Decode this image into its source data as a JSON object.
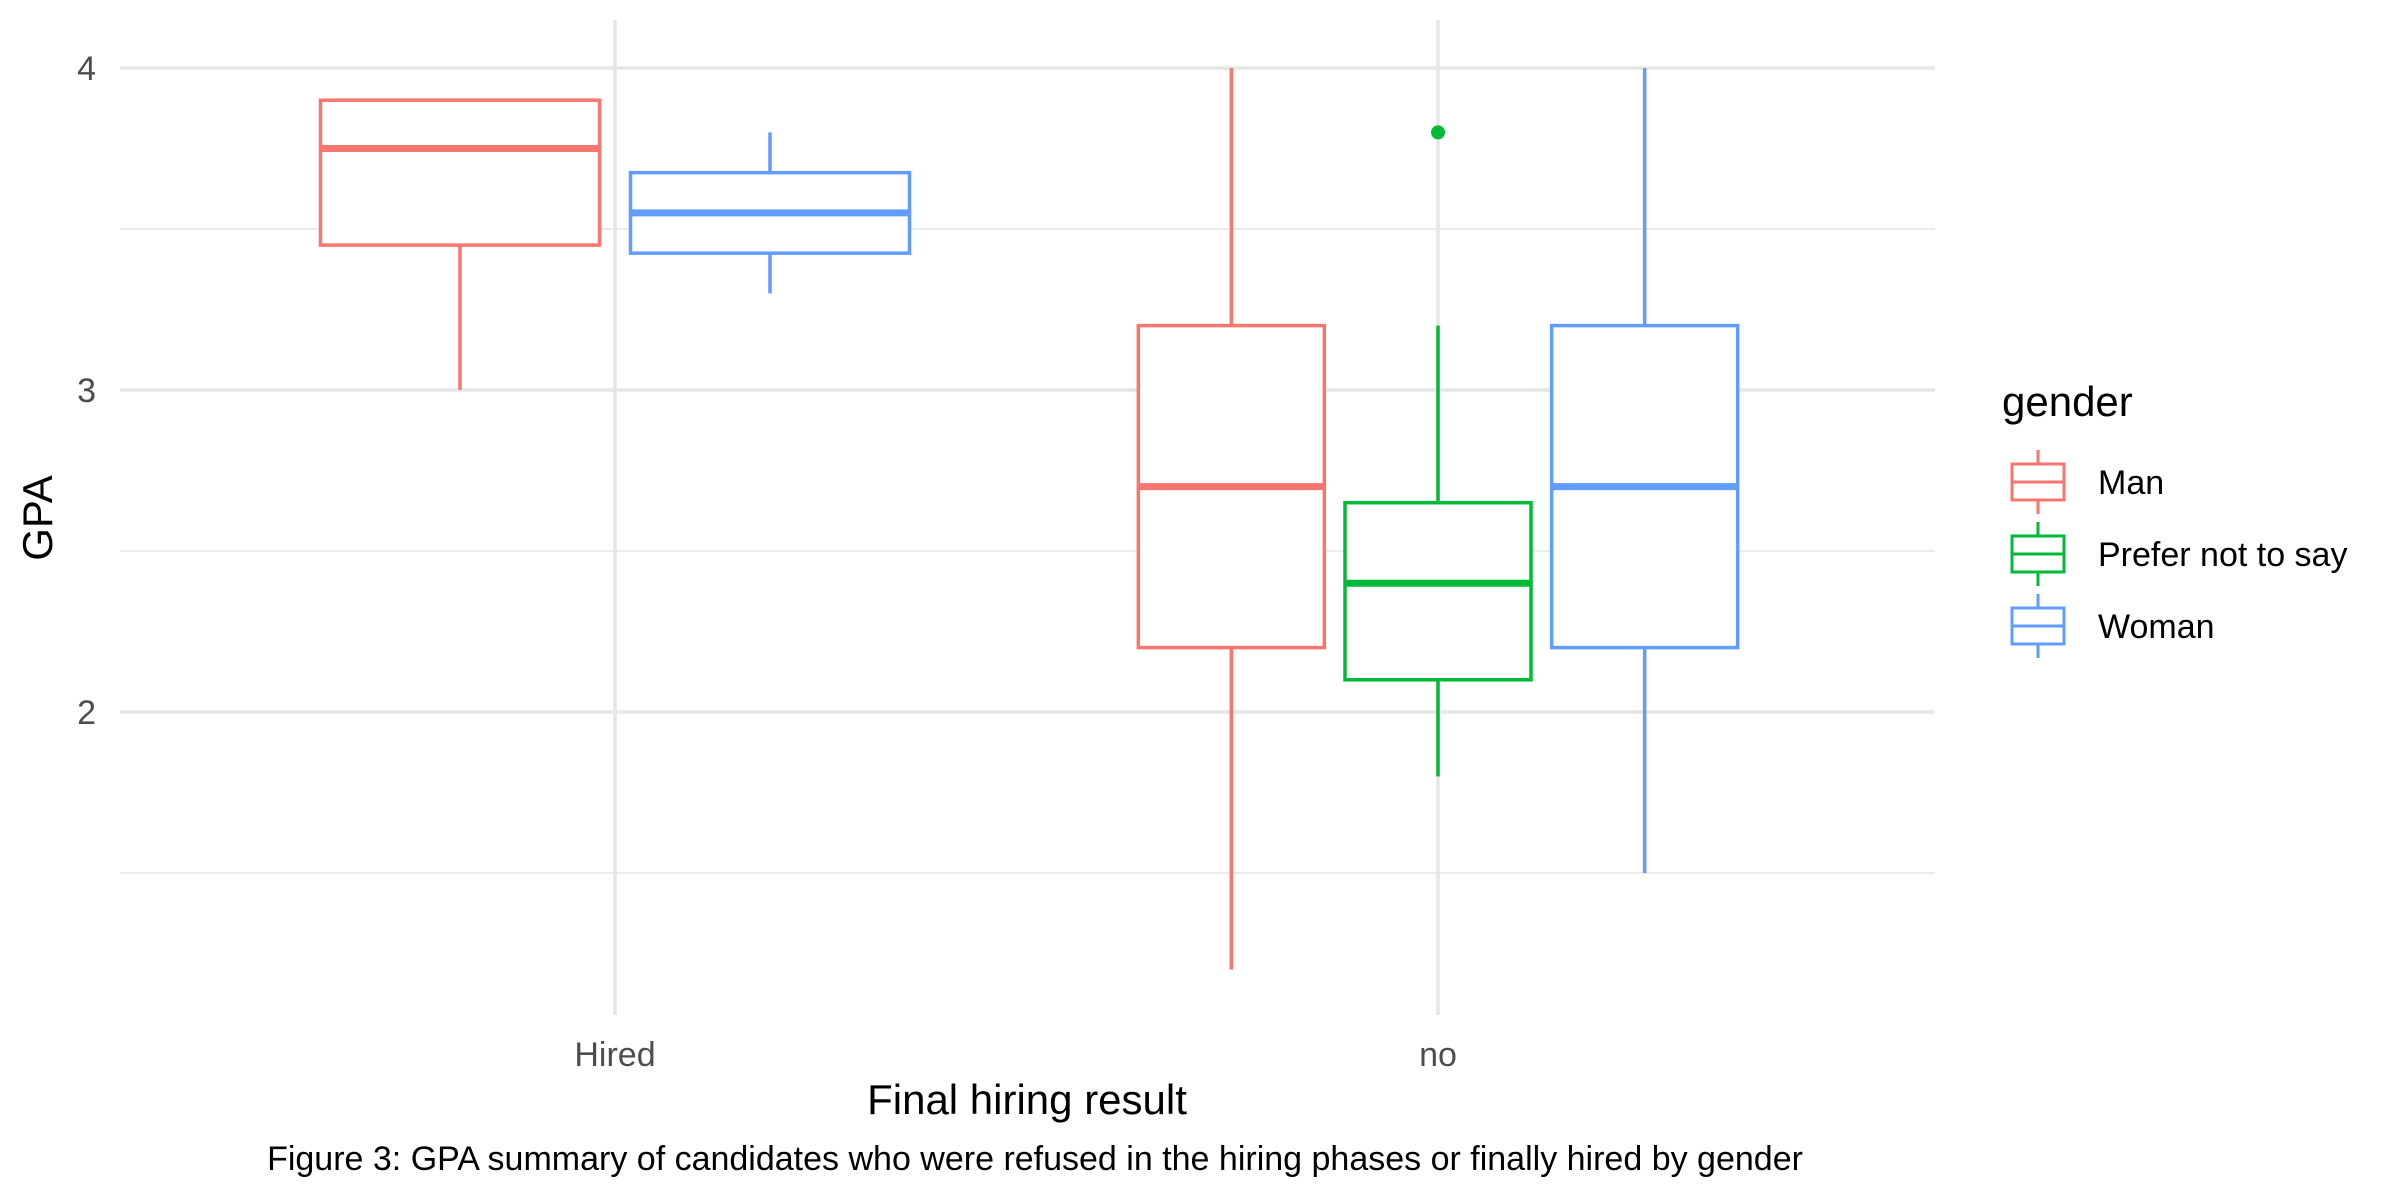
{
  "chart_data": {
    "type": "boxplot",
    "xlabel": "Final hiring result",
    "ylabel": "GPA",
    "categories": [
      "Hired",
      "no"
    ],
    "y_ticks": [
      "2",
      "3",
      "4"
    ],
    "ylim": [
      1.1,
      4.15
    ],
    "grid": true,
    "legend": {
      "title": "gender",
      "placement": "right",
      "entries": [
        "Man",
        "Prefer not to say",
        "Woman"
      ]
    },
    "series": [
      {
        "name": "Man",
        "color": "#F8766D",
        "boxes": [
          {
            "category": "Hired",
            "whisker_low": 3.0,
            "q1": 3.45,
            "median": 3.75,
            "q3": 3.9,
            "whisker_high": 3.9,
            "outliers": []
          },
          {
            "category": "no",
            "whisker_low": 1.2,
            "q1": 2.2,
            "median": 2.7,
            "q3": 3.2,
            "whisker_high": 4.0,
            "outliers": []
          }
        ]
      },
      {
        "name": "Prefer not to say",
        "color": "#00BA38",
        "boxes": [
          {
            "category": "no",
            "whisker_low": 1.8,
            "q1": 2.1,
            "median": 2.4,
            "q3": 2.65,
            "whisker_high": 3.2,
            "outliers": [
              3.8
            ]
          }
        ]
      },
      {
        "name": "Woman",
        "color": "#619CFF",
        "boxes": [
          {
            "category": "Hired",
            "whisker_low": 3.3,
            "q1": 3.425,
            "median": 3.55,
            "q3": 3.675,
            "whisker_high": 3.8,
            "outliers": []
          },
          {
            "category": "no",
            "whisker_low": 1.5,
            "q1": 2.2,
            "median": 2.7,
            "q3": 3.2,
            "whisker_high": 4.0,
            "outliers": []
          }
        ]
      }
    ]
  },
  "caption": "Figure 3: GPA summary of candidates who were refused in the hiring phases or finally hired by gender"
}
